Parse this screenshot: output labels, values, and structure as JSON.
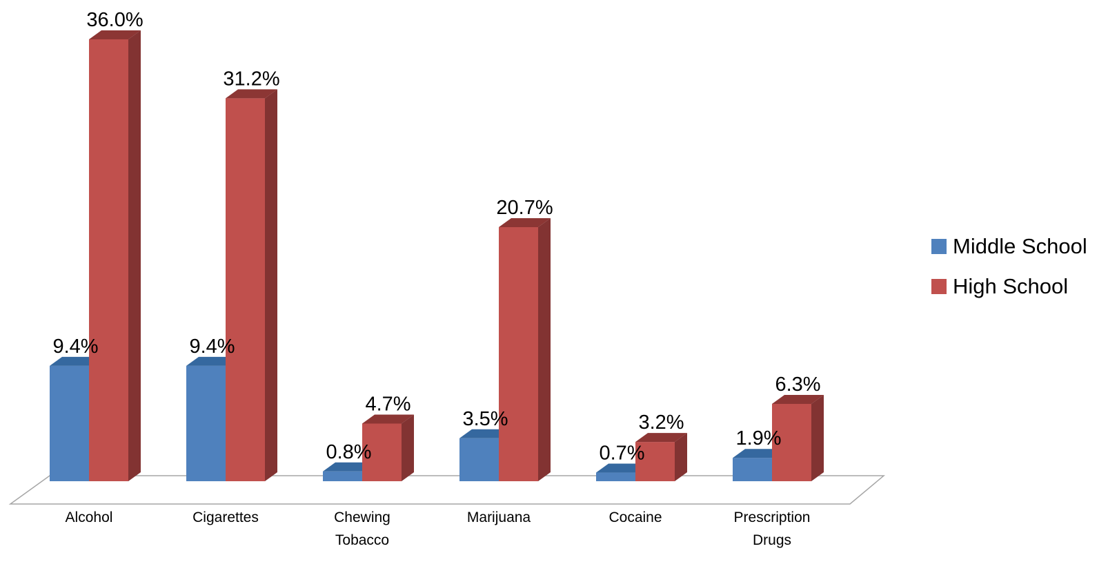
{
  "chart_data": {
    "type": "bar",
    "style": "3d-clustered-column",
    "categories": [
      [
        "Alcohol"
      ],
      [
        "Cigarettes"
      ],
      [
        "Chewing",
        "Tobacco"
      ],
      [
        "Marijuana"
      ],
      [
        "Cocaine"
      ],
      [
        "Prescription",
        "Drugs"
      ]
    ],
    "series": [
      {
        "name": "Middle School",
        "values": [
          9.4,
          9.4,
          0.8,
          3.5,
          0.7,
          1.9
        ],
        "labels": [
          "9.4%",
          "9.4%",
          "0.8%",
          "3.5%",
          "0.7%",
          "1.9%"
        ],
        "color": "#4F81BD"
      },
      {
        "name": "High School",
        "values": [
          36.0,
          31.2,
          4.7,
          20.7,
          3.2,
          6.3
        ],
        "labels": [
          "36.0%",
          "31.2%",
          "4.7%",
          "20.7%",
          "3.2%",
          "6.3%"
        ],
        "color": "#C0504D"
      }
    ],
    "ylim": [
      0,
      36
    ],
    "grid": false,
    "legend": "right"
  }
}
